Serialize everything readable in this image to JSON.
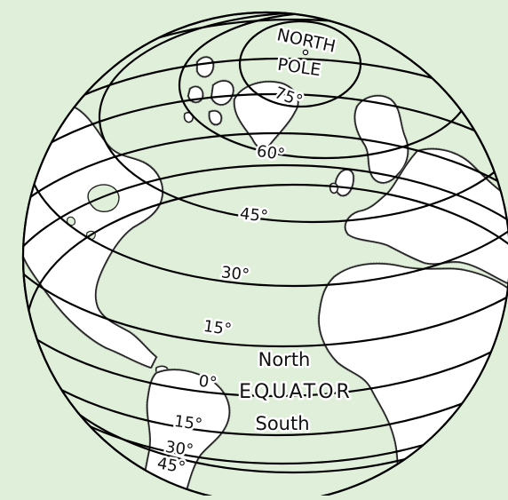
{
  "background_color": "#dfefd9",
  "globe_fill": "#dfefd9",
  "pole_label": {
    "line1": "NORTH",
    "line2": "POLE"
  },
  "latitudes": {
    "lat75": "75°",
    "lat60": "60°",
    "lat45": "45°",
    "lat30": "30°",
    "lat15": "15°",
    "lat0": "0°",
    "lat15s": "15°",
    "lat30s": "30°",
    "lat45s": "45°"
  },
  "equator": {
    "label": "EQUATOR",
    "north": "North",
    "south": "South"
  }
}
